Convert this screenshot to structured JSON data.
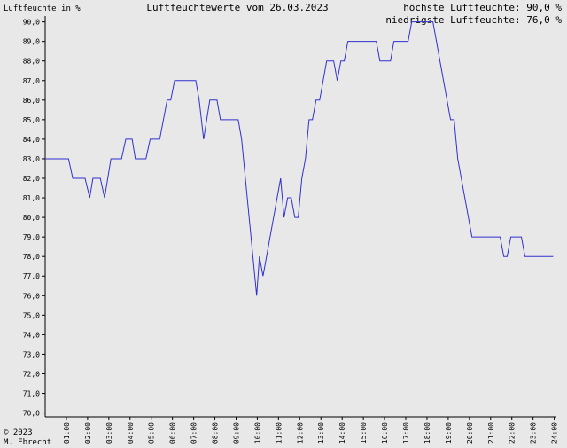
{
  "chart_data": {
    "type": "line",
    "title": "Luftfeuchtewerte vom 26.03.2023",
    "y_label": "Luftfeuchte in %",
    "annotations": [
      "höchste Luftfeuchte: 90,0 %",
      "niedrigste Luftfeuchte: 76,0 %",
      "© 2023",
      "M. Ebrecht"
    ],
    "color": "#3030d0",
    "x": [
      0,
      1.1,
      1.3,
      1.88,
      2.1,
      2.25,
      2.6,
      2.8,
      3.1,
      3.6,
      3.8,
      4.1,
      4.25,
      4.75,
      4.95,
      5.4,
      5.75,
      5.92,
      6.1,
      7.1,
      7.26,
      7.47,
      7.76,
      8.1,
      8.26,
      9.1,
      9.26,
      9.97,
      10.1,
      10.27,
      11.1,
      11.26,
      11.43,
      11.6,
      11.77,
      11.93,
      12.1,
      12.27,
      12.44,
      12.6,
      12.77,
      12.94,
      13.27,
      13.6,
      13.77,
      13.94,
      14.1,
      14.27,
      15.61,
      15.78,
      16.28,
      16.44,
      17.11,
      17.28,
      18.28,
      19.11,
      19.28,
      19.45,
      20.12,
      21.45,
      21.62,
      21.78,
      21.95,
      22.45,
      22.62,
      23.95
    ],
    "values": [
      83,
      83,
      82,
      82,
      81,
      82,
      82,
      81,
      83,
      83,
      84,
      84,
      83,
      83,
      84,
      84,
      86,
      86,
      87,
      87,
      86,
      84,
      86,
      86,
      85,
      85,
      84,
      76,
      78,
      77,
      82,
      80,
      81,
      81,
      80,
      80,
      82,
      83,
      85,
      85,
      86,
      86,
      88,
      88,
      87,
      88,
      88,
      89,
      89,
      88,
      88,
      89,
      89,
      90,
      90,
      85,
      85,
      83,
      79,
      79,
      78,
      78,
      79,
      79,
      78,
      78
    ],
    "xlim": [
      0,
      24.1
    ],
    "ylim": [
      69.8,
      90.3
    ],
    "xticks": [
      {
        "value": 1,
        "label": "01:00"
      },
      {
        "value": 2,
        "label": "02:00"
      },
      {
        "value": 3,
        "label": "03:00"
      },
      {
        "value": 4,
        "label": "04:00"
      },
      {
        "value": 5,
        "label": "05:00"
      },
      {
        "value": 6,
        "label": "06:00"
      },
      {
        "value": 7,
        "label": "07:00"
      },
      {
        "value": 8,
        "label": "08:00"
      },
      {
        "value": 9,
        "label": "09:00"
      },
      {
        "value": 10,
        "label": "10:00"
      },
      {
        "value": 11,
        "label": "11:00"
      },
      {
        "value": 12,
        "label": "12:00"
      },
      {
        "value": 13,
        "label": "13:00"
      },
      {
        "value": 14,
        "label": "14:00"
      },
      {
        "value": 15,
        "label": "15:00"
      },
      {
        "value": 16,
        "label": "16:00"
      },
      {
        "value": 17,
        "label": "17:00"
      },
      {
        "value": 18,
        "label": "18:00"
      },
      {
        "value": 19,
        "label": "19:00"
      },
      {
        "value": 20,
        "label": "20:00"
      },
      {
        "value": 21,
        "label": "21:00"
      },
      {
        "value": 22,
        "label": "22:00"
      },
      {
        "value": 23,
        "label": "23:00"
      },
      {
        "value": 24,
        "label": "24:00"
      }
    ],
    "yticks": [
      {
        "value": 70,
        "label": "70,0"
      },
      {
        "value": 71,
        "label": "71,0"
      },
      {
        "value": 72,
        "label": "72,0"
      },
      {
        "value": 73,
        "label": "73,0"
      },
      {
        "value": 74,
        "label": "74,0"
      },
      {
        "value": 75,
        "label": "75,0"
      },
      {
        "value": 76,
        "label": "76,0"
      },
      {
        "value": 77,
        "label": "77,0"
      },
      {
        "value": 78,
        "label": "78,0"
      },
      {
        "value": 79,
        "label": "79,0"
      },
      {
        "value": 80,
        "label": "80,0"
      },
      {
        "value": 81,
        "label": "81,0"
      },
      {
        "value": 82,
        "label": "82,0"
      },
      {
        "value": 83,
        "label": "83,0"
      },
      {
        "value": 84,
        "label": "84,0"
      },
      {
        "value": 85,
        "label": "85,0"
      },
      {
        "value": 86,
        "label": "86,0"
      },
      {
        "value": 87,
        "label": "87,0"
      },
      {
        "value": 88,
        "label": "88,0"
      },
      {
        "value": 89,
        "label": "89,0"
      },
      {
        "value": 90,
        "label": "90,0"
      }
    ]
  }
}
